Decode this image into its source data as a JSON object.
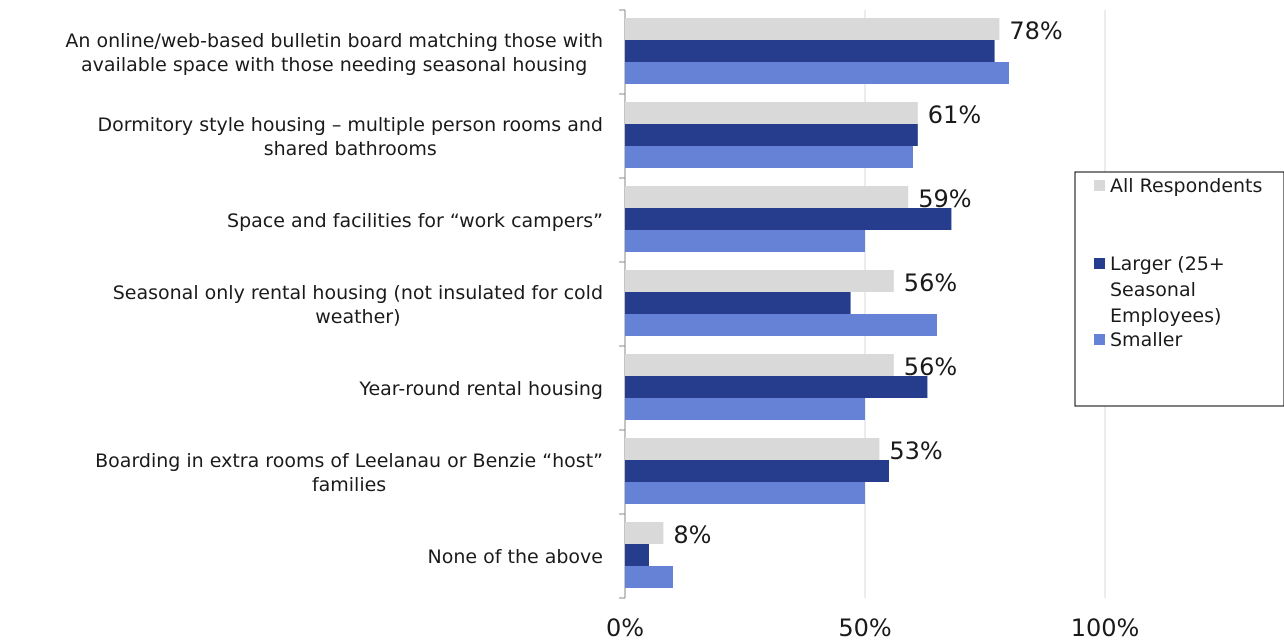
{
  "chart_data": {
    "type": "bar",
    "orientation": "horizontal",
    "categories": [
      "An online/web-based bulletin board matching those with available space with those needing seasonal housing",
      "Dormitory style housing – multiple person rooms and shared bathrooms",
      "Space and facilities for “work campers”",
      "Seasonal only rental housing (not insulated for cold weather)",
      "Year-round rental housing",
      "Boarding in extra rooms of  Leelanau or Benzie “host” families",
      "None of the above"
    ],
    "category_label_lines": [
      [
        "An online/web-based bulletin board matching those with",
        "available space with those needing seasonal housing"
      ],
      [
        "Dormitory style housing – multiple person rooms and",
        "shared bathrooms"
      ],
      [
        "Space and facilities for “work campers”"
      ],
      [
        "Seasonal only rental housing (not insulated for cold",
        "weather)"
      ],
      [
        "Year-round rental housing"
      ],
      [
        "Boarding in extra rooms of  Leelanau or Benzie “host”",
        "families"
      ],
      [
        "None of the above"
      ]
    ],
    "series": [
      {
        "name": "All Respondents",
        "color": "#d9d9d9",
        "values": [
          78,
          61,
          59,
          56,
          56,
          53,
          8
        ]
      },
      {
        "name": "Larger (25+ Seasonal Employees)",
        "color": "#253d8c",
        "values": [
          77,
          61,
          68,
          47,
          63,
          55,
          5
        ]
      },
      {
        "name": "Smaller",
        "color": "#6582d6",
        "values": [
          80,
          60,
          50,
          65,
          50,
          50,
          10
        ]
      }
    ],
    "data_labels": [
      "78%",
      "61%",
      "59%",
      "56%",
      "56%",
      "53%",
      "8%"
    ],
    "x_ticks": [
      "0%",
      "50%",
      "100%"
    ],
    "xlim": [
      0,
      100
    ],
    "grid": true,
    "legend_position": "right",
    "legend_label_lines": [
      [
        "All Respondents"
      ],
      [
        "Larger (25+",
        "Seasonal",
        "Employees)"
      ],
      [
        "Smaller"
      ]
    ],
    "title": "",
    "xlabel": "",
    "ylabel": ""
  }
}
